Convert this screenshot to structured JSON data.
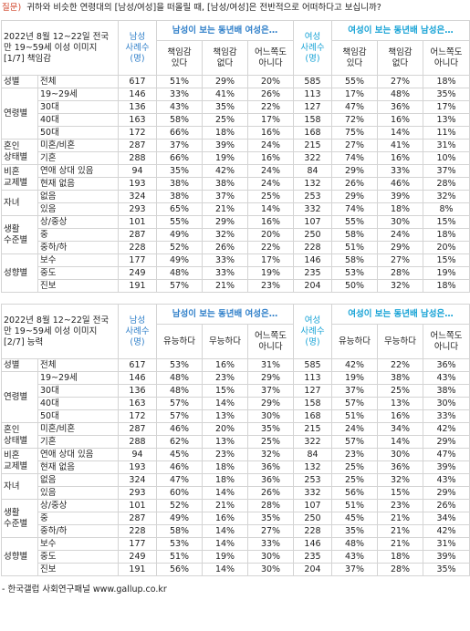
{
  "header": {
    "label": "질문)",
    "question": "귀하와 비슷한 연령대의 [남성/여성]을 떠올릴 때, [남성/여성]은 전반적으로 어떠하다고 보십니까?"
  },
  "tables": [
    {
      "title": "2022년 8월 12~22일 전국\n만 19~59세 이성 이미지\n[1/7] 책임감",
      "male_n": "남성\n사례수\n(명)",
      "male_header": "남성이 보는 동년배 여성은…",
      "female_n": "여성\n사례수\n(명)",
      "female_header": "여성이 보는 동년배 남성은…",
      "answers": [
        "책임감\n있다",
        "책임감\n없다",
        "어느쪽도\n아니다"
      ],
      "groups": [
        {
          "label": "성별",
          "rows": [
            {
              "label": "전체",
              "values": [
                "617",
                "51%",
                "29%",
                "20%",
                "585",
                "55%",
                "27%",
                "18%"
              ]
            }
          ]
        },
        {
          "label": "연령별",
          "rows": [
            {
              "label": "19~29세",
              "values": [
                "146",
                "33%",
                "41%",
                "26%",
                "113",
                "17%",
                "48%",
                "35%"
              ]
            },
            {
              "label": "30대",
              "values": [
                "136",
                "43%",
                "35%",
                "22%",
                "127",
                "47%",
                "36%",
                "17%"
              ]
            },
            {
              "label": "40대",
              "values": [
                "163",
                "58%",
                "25%",
                "17%",
                "158",
                "72%",
                "16%",
                "13%"
              ]
            },
            {
              "label": "50대",
              "values": [
                "172",
                "66%",
                "18%",
                "16%",
                "168",
                "75%",
                "14%",
                "11%"
              ]
            }
          ]
        },
        {
          "label": "혼인\n상태별",
          "rows": [
            {
              "label": "미혼/비혼",
              "values": [
                "287",
                "37%",
                "39%",
                "24%",
                "215",
                "27%",
                "41%",
                "31%"
              ]
            },
            {
              "label": "기혼",
              "values": [
                "288",
                "66%",
                "19%",
                "16%",
                "322",
                "74%",
                "16%",
                "10%"
              ]
            }
          ]
        },
        {
          "label": "비혼\n교제별",
          "rows": [
            {
              "label": "연애 상대 있음",
              "values": [
                "94",
                "35%",
                "42%",
                "24%",
                "84",
                "29%",
                "33%",
                "37%"
              ]
            },
            {
              "label": "현재 없음",
              "values": [
                "193",
                "38%",
                "38%",
                "24%",
                "132",
                "26%",
                "46%",
                "28%"
              ]
            }
          ]
        },
        {
          "label": "자녀",
          "rows": [
            {
              "label": "없음",
              "values": [
                "324",
                "38%",
                "37%",
                "25%",
                "253",
                "29%",
                "39%",
                "32%"
              ]
            },
            {
              "label": "있음",
              "values": [
                "293",
                "65%",
                "21%",
                "14%",
                "332",
                "74%",
                "18%",
                "8%"
              ]
            }
          ]
        },
        {
          "label": "생활\n수준별",
          "rows": [
            {
              "label": "상/중상",
              "values": [
                "101",
                "55%",
                "29%",
                "16%",
                "107",
                "55%",
                "30%",
                "15%"
              ]
            },
            {
              "label": "중",
              "values": [
                "287",
                "49%",
                "32%",
                "20%",
                "250",
                "58%",
                "24%",
                "18%"
              ]
            },
            {
              "label": "중하/하",
              "values": [
                "228",
                "52%",
                "26%",
                "22%",
                "228",
                "51%",
                "29%",
                "20%"
              ]
            }
          ]
        },
        {
          "label": "성향별",
          "rows": [
            {
              "label": "보수",
              "values": [
                "177",
                "49%",
                "33%",
                "17%",
                "146",
                "58%",
                "27%",
                "15%"
              ]
            },
            {
              "label": "중도",
              "values": [
                "249",
                "48%",
                "33%",
                "19%",
                "235",
                "53%",
                "28%",
                "19%"
              ]
            },
            {
              "label": "진보",
              "values": [
                "191",
                "57%",
                "21%",
                "23%",
                "204",
                "50%",
                "32%",
                "18%"
              ]
            }
          ]
        }
      ]
    },
    {
      "title": "2022년 8월 12~22일 전국\n만 19~59세 이성 이미지\n[2/7] 능력",
      "male_n": "남성\n사례수\n(명)",
      "male_header": "남성이 보는 동년배 여성은…",
      "female_n": "여성\n사례수\n(명)",
      "female_header": "여성이 보는 동년배 남성은…",
      "answers": [
        "유능하다",
        "무능하다",
        "어느쪽도\n아니다"
      ],
      "groups": [
        {
          "label": "성별",
          "rows": [
            {
              "label": "전체",
              "values": [
                "617",
                "53%",
                "16%",
                "31%",
                "585",
                "42%",
                "22%",
                "36%"
              ]
            }
          ]
        },
        {
          "label": "연령별",
          "rows": [
            {
              "label": "19~29세",
              "values": [
                "146",
                "48%",
                "23%",
                "29%",
                "113",
                "19%",
                "38%",
                "43%"
              ]
            },
            {
              "label": "30대",
              "values": [
                "136",
                "48%",
                "15%",
                "37%",
                "127",
                "37%",
                "25%",
                "38%"
              ]
            },
            {
              "label": "40대",
              "values": [
                "163",
                "57%",
                "14%",
                "29%",
                "158",
                "57%",
                "13%",
                "30%"
              ]
            },
            {
              "label": "50대",
              "values": [
                "172",
                "57%",
                "13%",
                "30%",
                "168",
                "51%",
                "16%",
                "33%"
              ]
            }
          ]
        },
        {
          "label": "혼인\n상태별",
          "rows": [
            {
              "label": "미혼/비혼",
              "values": [
                "287",
                "46%",
                "20%",
                "35%",
                "215",
                "24%",
                "34%",
                "42%"
              ]
            },
            {
              "label": "기혼",
              "values": [
                "288",
                "62%",
                "13%",
                "25%",
                "322",
                "57%",
                "14%",
                "29%"
              ]
            }
          ]
        },
        {
          "label": "비혼\n교제별",
          "rows": [
            {
              "label": "연애 상대 있음",
              "values": [
                "94",
                "45%",
                "23%",
                "32%",
                "84",
                "23%",
                "30%",
                "47%"
              ]
            },
            {
              "label": "현재 없음",
              "values": [
                "193",
                "46%",
                "18%",
                "36%",
                "132",
                "25%",
                "36%",
                "39%"
              ]
            }
          ]
        },
        {
          "label": "자녀",
          "rows": [
            {
              "label": "없음",
              "values": [
                "324",
                "47%",
                "18%",
                "36%",
                "253",
                "25%",
                "32%",
                "43%"
              ]
            },
            {
              "label": "있음",
              "values": [
                "293",
                "60%",
                "14%",
                "26%",
                "332",
                "56%",
                "15%",
                "29%"
              ]
            }
          ]
        },
        {
          "label": "생활\n수준별",
          "rows": [
            {
              "label": "상/중상",
              "values": [
                "101",
                "52%",
                "21%",
                "28%",
                "107",
                "51%",
                "23%",
                "26%"
              ]
            },
            {
              "label": "중",
              "values": [
                "287",
                "49%",
                "16%",
                "35%",
                "250",
                "45%",
                "21%",
                "34%"
              ]
            },
            {
              "label": "중하/하",
              "values": [
                "228",
                "58%",
                "14%",
                "27%",
                "228",
                "35%",
                "21%",
                "42%"
              ]
            }
          ]
        },
        {
          "label": "성향별",
          "rows": [
            {
              "label": "보수",
              "values": [
                "177",
                "53%",
                "14%",
                "33%",
                "146",
                "48%",
                "21%",
                "31%"
              ]
            },
            {
              "label": "중도",
              "values": [
                "249",
                "51%",
                "19%",
                "30%",
                "235",
                "43%",
                "18%",
                "39%"
              ]
            },
            {
              "label": "진보",
              "values": [
                "191",
                "56%",
                "14%",
                "30%",
                "204",
                "37%",
                "28%",
                "35%"
              ]
            }
          ]
        }
      ]
    }
  ],
  "footer": "- 한국갤럽 사회연구패널 www.gallup.co.kr"
}
